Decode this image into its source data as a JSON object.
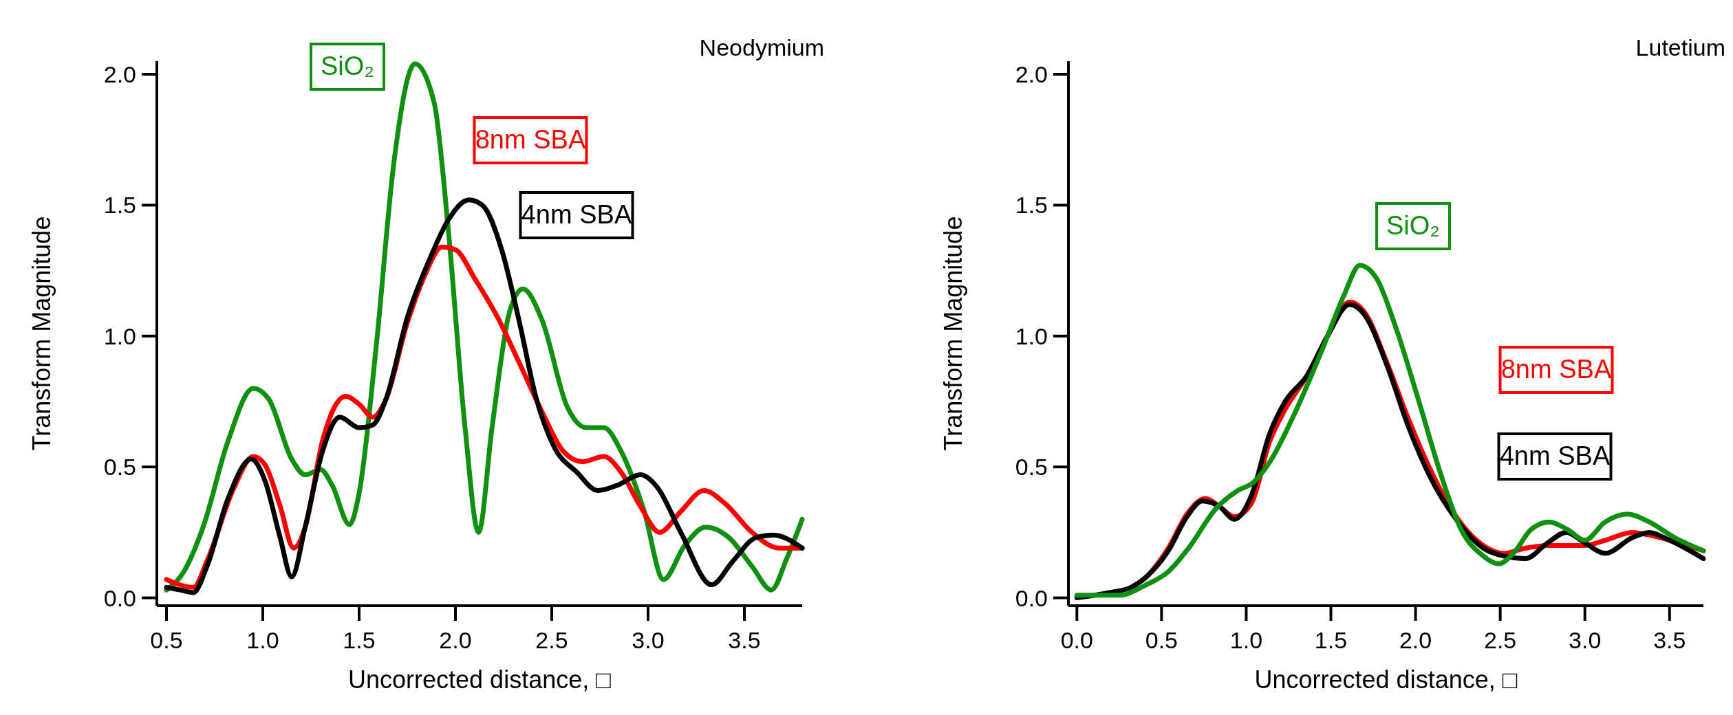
{
  "chart_data": [
    {
      "type": "line",
      "title": "Neodymium",
      "xlabel": "Uncorrected distance, □",
      "ylabel": "Transform Magnitude",
      "xlim": [
        0.45,
        3.8
      ],
      "ylim": [
        -0.03,
        2.05
      ],
      "xticks": [
        {
          "value": 0.5,
          "label": "0.5"
        },
        {
          "value": 1,
          "label": "1.0"
        },
        {
          "value": 1.5,
          "label": "1.5"
        },
        {
          "value": 2,
          "label": "2.0"
        },
        {
          "value": 2.5,
          "label": "2.5"
        },
        {
          "value": 3,
          "label": "3.0"
        },
        {
          "value": 3.5,
          "label": "3.5"
        }
      ],
      "yticks": [
        {
          "value": 0,
          "label": "0.0"
        },
        {
          "value": 0.5,
          "label": "0.5"
        },
        {
          "value": 1,
          "label": "1.0"
        },
        {
          "value": 1.5,
          "label": "1.5"
        },
        {
          "value": 2,
          "label": "2.0"
        }
      ],
      "grid": false,
      "line_style": "solid",
      "marker": "none",
      "series": [
        {
          "name": "SiO₂",
          "color": "#109010",
          "x": [
            0.5,
            0.59,
            0.69,
            0.82,
            0.95,
            1.03,
            1.15,
            1.22,
            1.3,
            1.36,
            1.45,
            1.5,
            1.59,
            1.68,
            1.79,
            1.89,
            1.96,
            2.05,
            2.12,
            2.19,
            2.28,
            2.35,
            2.45,
            2.58,
            2.68,
            2.77,
            2.86,
            2.98,
            3.08,
            3.19,
            3.3,
            3.42,
            3.54,
            3.64,
            3.72,
            3.8
          ],
          "values": [
            0.03,
            0.1,
            0.27,
            0.6,
            0.8,
            0.76,
            0.53,
            0.47,
            0.49,
            0.43,
            0.28,
            0.4,
            0.97,
            1.66,
            2.04,
            1.89,
            1.43,
            0.65,
            0.25,
            0.65,
            1.09,
            1.18,
            1.06,
            0.73,
            0.65,
            0.65,
            0.56,
            0.33,
            0.07,
            0.2,
            0.27,
            0.23,
            0.12,
            0.03,
            0.15,
            0.3
          ]
        },
        {
          "name": "8nm SBA",
          "color": "#ff0000",
          "x": [
            0.5,
            0.64,
            0.71,
            0.85,
            0.95,
            1.01,
            1.09,
            1.16,
            1.22,
            1.31,
            1.43,
            1.5,
            1.57,
            1.64,
            1.75,
            1.84,
            1.93,
            2,
            2.1,
            2.22,
            2.33,
            2.45,
            2.56,
            2.66,
            2.77,
            2.86,
            2.96,
            3.06,
            3.17,
            3.29,
            3.4,
            3.54,
            3.68,
            3.8
          ],
          "values": [
            0.07,
            0.04,
            0.14,
            0.42,
            0.54,
            0.51,
            0.35,
            0.19,
            0.27,
            0.6,
            0.77,
            0.74,
            0.69,
            0.76,
            1.05,
            1.23,
            1.34,
            1.33,
            1.22,
            1.07,
            0.9,
            0.71,
            0.56,
            0.52,
            0.54,
            0.48,
            0.35,
            0.25,
            0.33,
            0.41,
            0.36,
            0.25,
            0.19,
            0.19
          ]
        },
        {
          "name": "4nm SBA",
          "color": "#000000",
          "x": [
            0.5,
            0.57,
            0.64,
            0.71,
            0.82,
            0.94,
            1.01,
            1.09,
            1.15,
            1.22,
            1.31,
            1.4,
            1.5,
            1.57,
            1.64,
            1.75,
            1.87,
            1.96,
            2.07,
            2.14,
            2.24,
            2.33,
            2.42,
            2.51,
            2.63,
            2.74,
            2.84,
            2.96,
            3.05,
            3.17,
            3.33,
            3.44,
            3.56,
            3.65,
            3.8
          ],
          "values": [
            0.04,
            0.03,
            0.02,
            0.12,
            0.38,
            0.53,
            0.45,
            0.23,
            0.08,
            0.27,
            0.56,
            0.69,
            0.65,
            0.66,
            0.76,
            1.07,
            1.3,
            1.44,
            1.52,
            1.5,
            1.33,
            1.06,
            0.76,
            0.58,
            0.48,
            0.41,
            0.43,
            0.47,
            0.42,
            0.25,
            0.05,
            0.14,
            0.23,
            0.24,
            0.19
          ]
        }
      ]
    },
    {
      "type": "line",
      "title": "Lutetium",
      "xlabel": "Uncorrected distance, □",
      "ylabel": "Transform Magnitude",
      "xlim": [
        -0.05,
        3.7
      ],
      "ylim": [
        -0.03,
        2.05
      ],
      "xticks": [
        {
          "value": 0,
          "label": "0.0"
        },
        {
          "value": 0.5,
          "label": "0.5"
        },
        {
          "value": 1,
          "label": "1.0"
        },
        {
          "value": 1.5,
          "label": "1.5"
        },
        {
          "value": 2,
          "label": "2.0"
        },
        {
          "value": 2.5,
          "label": "2.5"
        },
        {
          "value": 3,
          "label": "3.0"
        },
        {
          "value": 3.5,
          "label": "3.5"
        }
      ],
      "yticks": [
        {
          "value": 0,
          "label": "0.0"
        },
        {
          "value": 0.5,
          "label": "0.5"
        },
        {
          "value": 1,
          "label": "1.0"
        },
        {
          "value": 1.5,
          "label": "1.5"
        },
        {
          "value": 2,
          "label": "2.0"
        }
      ],
      "grid": false,
      "line_style": "solid",
      "marker": "none",
      "series": [
        {
          "name": "8nm SBA",
          "color": "#ff0000",
          "x": [
            0.32,
            0.41,
            0.54,
            0.65,
            0.76,
            0.84,
            0.93,
            1.03,
            1.14,
            1.23,
            1.36,
            1.48,
            1.61,
            1.7,
            1.83,
            1.96,
            2.08,
            2.24,
            2.4,
            2.52,
            2.65,
            2.78,
            2.89,
            3,
            3.12,
            3.28,
            3.38,
            3.5,
            3.7
          ],
          "values": [
            0.04,
            0.08,
            0.19,
            0.32,
            0.38,
            0.35,
            0.31,
            0.36,
            0.6,
            0.72,
            0.85,
            1,
            1.13,
            1.09,
            0.9,
            0.68,
            0.5,
            0.31,
            0.2,
            0.17,
            0.19,
            0.2,
            0.2,
            0.2,
            0.22,
            0.25,
            0.24,
            0.22,
            0.18
          ]
        },
        {
          "name": "4nm SBA",
          "color": "#000000",
          "x": [
            0,
            0.19,
            0.32,
            0.41,
            0.54,
            0.65,
            0.74,
            0.84,
            0.93,
            1.03,
            1.14,
            1.23,
            1.36,
            1.48,
            1.61,
            1.7,
            1.83,
            1.96,
            2.08,
            2.24,
            2.4,
            2.52,
            2.65,
            2.78,
            2.89,
            3,
            3.12,
            3.28,
            3.38,
            3.5,
            3.7
          ],
          "values": [
            0,
            0.02,
            0.04,
            0.08,
            0.18,
            0.31,
            0.37,
            0.35,
            0.3,
            0.39,
            0.63,
            0.75,
            0.85,
            1,
            1.12,
            1.08,
            0.89,
            0.65,
            0.47,
            0.3,
            0.19,
            0.16,
            0.15,
            0.21,
            0.25,
            0.21,
            0.17,
            0.23,
            0.25,
            0.22,
            0.15
          ]
        },
        {
          "name": "SiO₂",
          "color": "#109010",
          "x": [
            0,
            0.25,
            0.41,
            0.54,
            0.66,
            0.82,
            0.95,
            1.04,
            1.14,
            1.29,
            1.45,
            1.58,
            1.67,
            1.77,
            1.89,
            2.02,
            2.15,
            2.27,
            2.4,
            2.49,
            2.59,
            2.68,
            2.79,
            2.9,
            3,
            3.12,
            3.25,
            3.38,
            3.53,
            3.7
          ],
          "values": [
            0.01,
            0.01,
            0.05,
            0.1,
            0.19,
            0.34,
            0.41,
            0.44,
            0.52,
            0.71,
            0.95,
            1.16,
            1.27,
            1.22,
            1.02,
            0.75,
            0.47,
            0.26,
            0.16,
            0.13,
            0.18,
            0.26,
            0.29,
            0.26,
            0.22,
            0.29,
            0.32,
            0.29,
            0.23,
            0.18
          ]
        }
      ]
    }
  ]
}
